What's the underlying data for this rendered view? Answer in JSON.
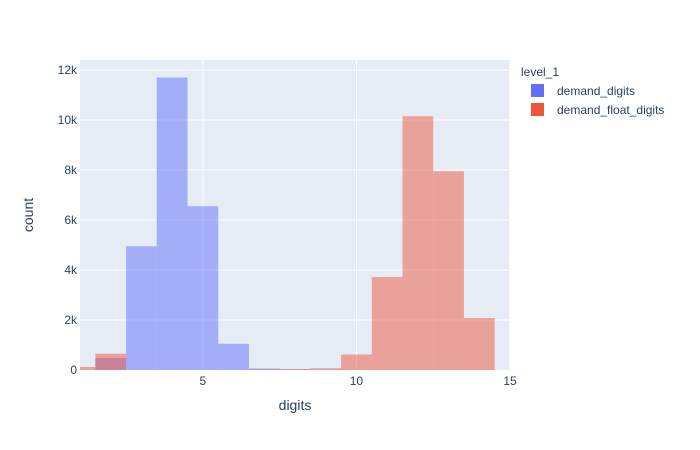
{
  "chart_data": {
    "type": "bar",
    "bar_mode": "overlay",
    "xlabel": "digits",
    "ylabel": "count",
    "xlim": [
      1,
      15
    ],
    "ylim": [
      0,
      12400
    ],
    "x_ticks": [
      5,
      10,
      15
    ],
    "y_ticks": [
      0,
      2000,
      4000,
      6000,
      8000,
      10000,
      12000
    ],
    "y_tick_labels": [
      "0",
      "2k",
      "4k",
      "6k",
      "8k",
      "10k",
      "12k"
    ],
    "grid": true,
    "legend": {
      "title": "level_1",
      "placement": "top-right outside"
    },
    "series": [
      {
        "name": "demand_digits",
        "color": "#636efa",
        "bins": [
          {
            "x0": 1.5,
            "x1": 2.5,
            "value": 480
          },
          {
            "x0": 2.5,
            "x1": 3.5,
            "value": 4950
          },
          {
            "x0": 3.5,
            "x1": 4.5,
            "value": 11700
          },
          {
            "x0": 4.5,
            "x1": 5.5,
            "value": 6550
          },
          {
            "x0": 5.5,
            "x1": 6.5,
            "value": 1050
          },
          {
            "x0": 6.5,
            "x1": 7.5,
            "value": 60
          },
          {
            "x0": 7.5,
            "x1": 8.5,
            "value": 25
          },
          {
            "x0": 8.5,
            "x1": 9.5,
            "value": 10
          }
        ]
      },
      {
        "name": "demand_float_digits",
        "color": "#ef553b",
        "bins": [
          {
            "x0": 0.5,
            "x1": 1.5,
            "value": 120
          },
          {
            "x0": 1.5,
            "x1": 2.5,
            "value": 650
          },
          {
            "x0": 6.5,
            "x1": 7.5,
            "value": 20
          },
          {
            "x0": 7.5,
            "x1": 8.5,
            "value": 40
          },
          {
            "x0": 8.5,
            "x1": 9.5,
            "value": 70
          },
          {
            "x0": 9.5,
            "x1": 10.5,
            "value": 620
          },
          {
            "x0": 10.5,
            "x1": 11.5,
            "value": 3720
          },
          {
            "x0": 11.5,
            "x1": 12.5,
            "value": 10150
          },
          {
            "x0": 12.5,
            "x1": 13.5,
            "value": 7950
          },
          {
            "x0": 13.5,
            "x1": 14.5,
            "value": 2080
          }
        ]
      }
    ]
  }
}
